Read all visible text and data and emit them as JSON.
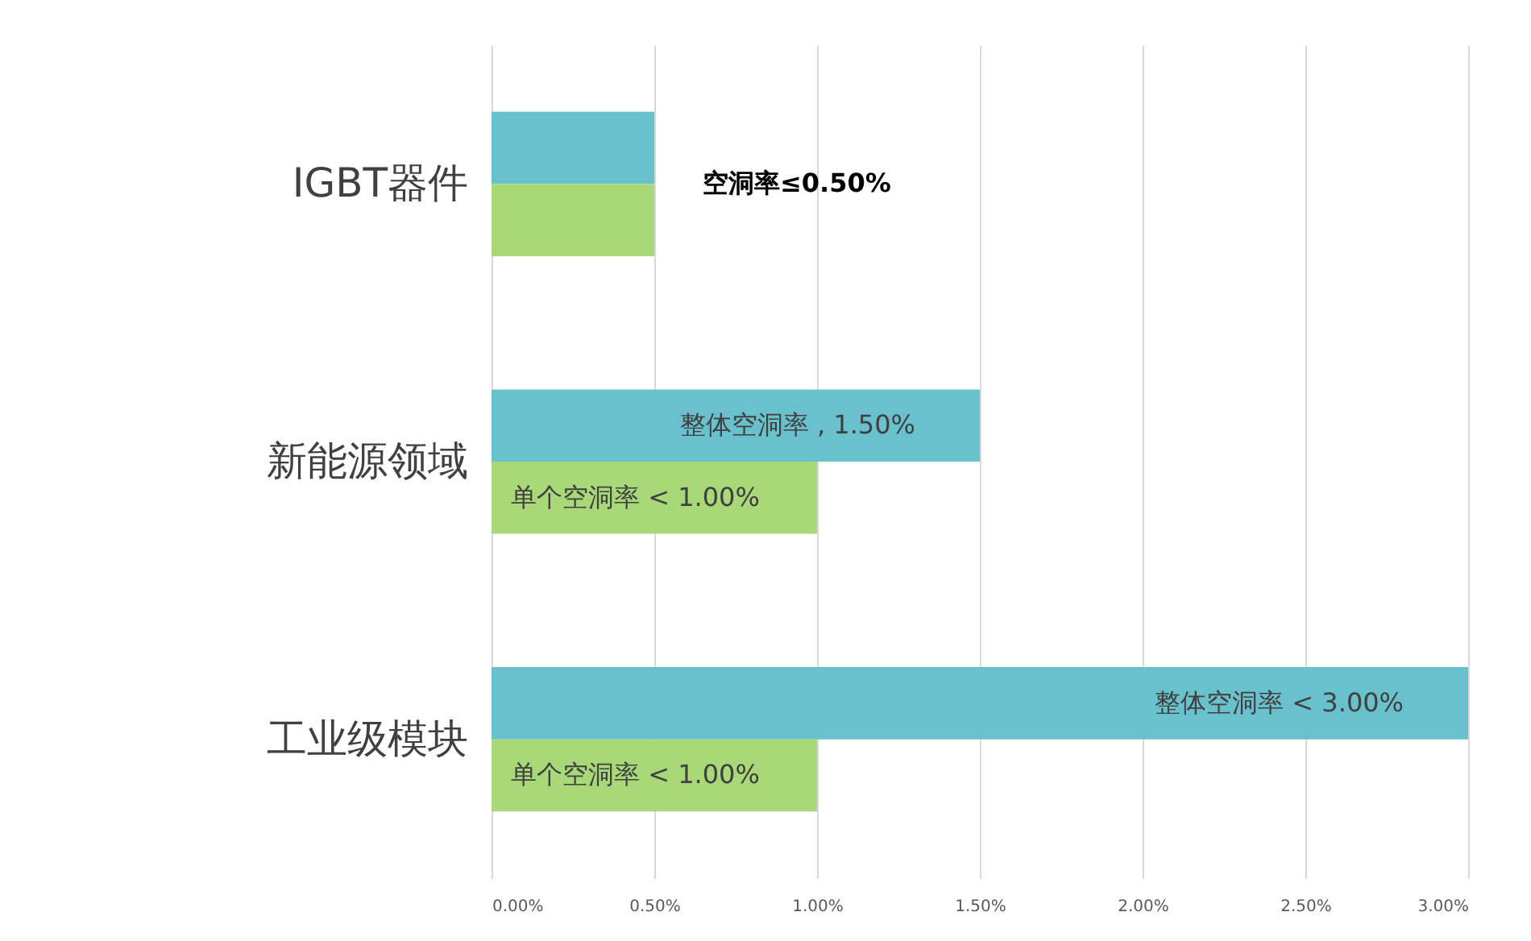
{
  "chart_data": {
    "type": "bar",
    "orientation": "horizontal",
    "categories": [
      "IGBT器件",
      "新能源领域",
      "工业级模块"
    ],
    "series": [
      {
        "color": "#6ac1ce",
        "values": [
          0.5,
          1.5,
          3.0
        ],
        "value_labels": [
          null,
          "整体空洞率 , 1.50%",
          "整体空洞率 < 3.00%"
        ]
      },
      {
        "color": "#a8d878",
        "values": [
          0.5,
          1.0,
          1.0
        ],
        "value_labels": [
          null,
          "单个空洞率 < 1.00%",
          "单个空洞率 < 1.00%"
        ]
      }
    ],
    "xlim": [
      0,
      3
    ],
    "xticks": [
      {
        "value": 0,
        "label": "0.00%"
      },
      {
        "value": 0.5,
        "label": "0.50%"
      },
      {
        "value": 1.0,
        "label": "1.00%"
      },
      {
        "value": 1.5,
        "label": "1.50%"
      },
      {
        "value": 2.0,
        "label": "2.00%"
      },
      {
        "value": 2.5,
        "label": "2.50%"
      },
      {
        "value": 3.0,
        "label": "3.00%"
      }
    ],
    "grid": "x",
    "annotations": [
      {
        "text": "空洞率≤0.50%",
        "x": 0.5,
        "y": "IGBT器件"
      }
    ]
  }
}
